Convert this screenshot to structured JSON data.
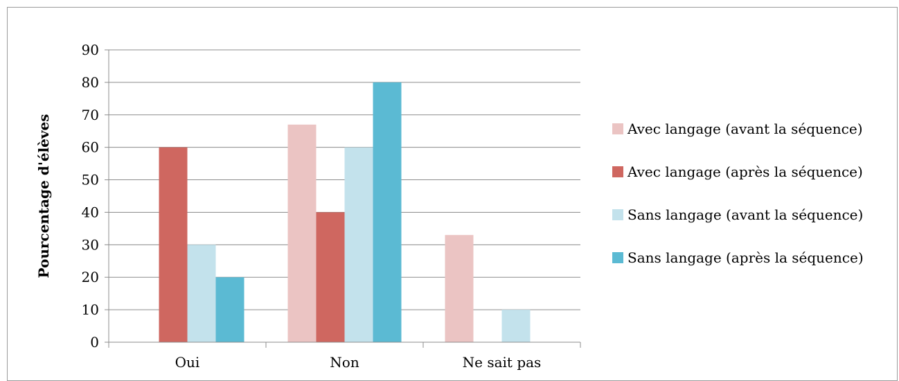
{
  "chart_data": {
    "type": "bar",
    "title": "",
    "xlabel": "",
    "ylabel": "Pourcentage d'élèves",
    "ylim": [
      0,
      90
    ],
    "yticks": [
      0,
      10,
      20,
      30,
      40,
      50,
      60,
      70,
      80,
      90
    ],
    "categories": [
      "Oui",
      "Non",
      "Ne sait pas"
    ],
    "grid": true,
    "legend_position": "right",
    "series": [
      {
        "name": "Avec langage (avant la séquence)",
        "color": "#ebc4c3",
        "values": [
          0,
          67,
          33
        ]
      },
      {
        "name": "Avec langage (après la séquence)",
        "color": "#cf6760",
        "values": [
          60,
          40,
          0
        ]
      },
      {
        "name": "Sans langage (avant la séquence)",
        "color": "#c3e2ec",
        "values": [
          30,
          60,
          10
        ]
      },
      {
        "name": "Sans langage (après la séquence)",
        "color": "#5bbad3",
        "values": [
          20,
          80,
          0
        ]
      }
    ]
  }
}
